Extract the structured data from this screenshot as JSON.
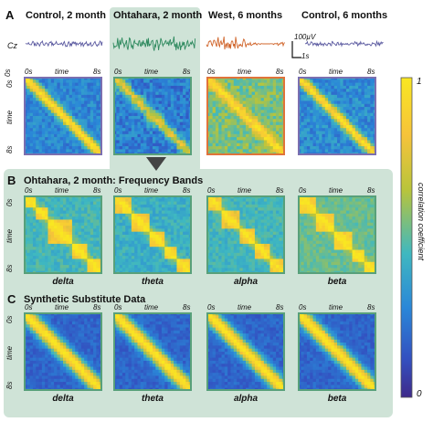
{
  "figure": {
    "panel_a": {
      "letter": "A",
      "columns": [
        {
          "title": "Control, 2 month",
          "frame": "#7b6fb0",
          "eeg_color": "#5b5aa0",
          "pattern": "control"
        },
        {
          "title": "Ohtahara, 2 month",
          "frame": "#58a07a",
          "eeg_color": "#2f8a5f",
          "pattern": "ohtahara"
        },
        {
          "title": "West, 6 months",
          "frame": "#e0733a",
          "eeg_color": "#d0642a",
          "pattern": "west"
        },
        {
          "title": "Control, 6 months",
          "frame": "#7b6fb0",
          "eeg_color": "#5b5aa0",
          "pattern": "control6"
        }
      ],
      "channel_label": "Cz",
      "scale_amp": "100µV",
      "scale_time": "1s"
    },
    "panel_b": {
      "letter": "B",
      "title": "Ohtahara, 2 month: Frequency Bands",
      "bands": [
        "delta",
        "theta",
        "alpha",
        "beta"
      ]
    },
    "panel_c": {
      "letter": "C",
      "title": "Synthetic Substitute Data",
      "bands": [
        "delta",
        "theta",
        "alpha",
        "beta"
      ]
    },
    "axes": {
      "x_start": "0s",
      "x_mid": "time",
      "x_end": "8s",
      "y_start": "0s",
      "y_mid": "time",
      "y_end": "8s"
    },
    "colorbar": {
      "max": "1",
      "min": "0",
      "label": "correlation coefficient"
    }
  },
  "colors": {
    "green_panel": "#cfe3d7",
    "green_frame": "#58a07a",
    "purple_frame": "#7b6fb0",
    "orange_frame": "#e0733a"
  }
}
